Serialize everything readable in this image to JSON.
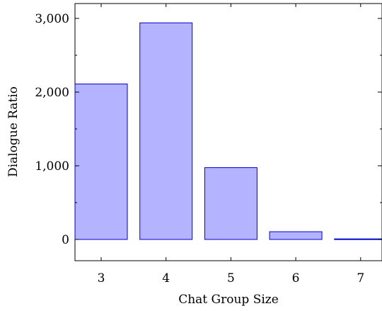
{
  "chart_data": {
    "type": "bar",
    "categories": [
      "3",
      "4",
      "5",
      "6",
      "7"
    ],
    "values": [
      2110,
      2940,
      975,
      105,
      8
    ],
    "xlabel": "Chat Group Size",
    "ylabel": "Dialogue Ratio",
    "ylim": [
      -300,
      3300
    ],
    "yticks": [
      0,
      1000,
      2000,
      3000
    ],
    "ytick_labels": [
      "0",
      "1,000",
      "2,000",
      "3,000"
    ],
    "grid": false,
    "colors": {
      "bar_fill": "#b3b3ff",
      "bar_stroke": "#0000cc"
    }
  }
}
